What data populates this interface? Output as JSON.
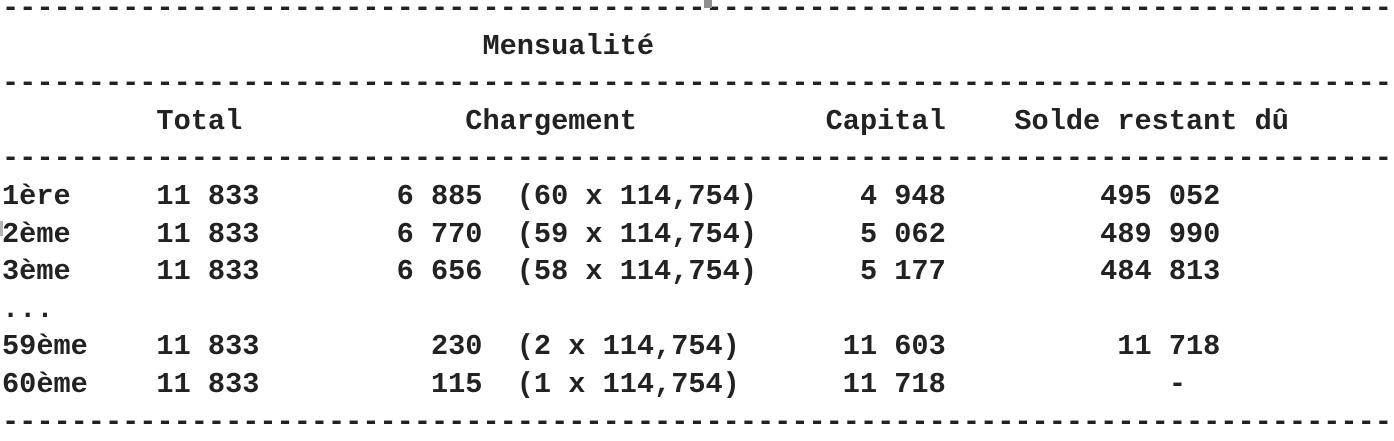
{
  "colors": {
    "text_color": "#222222",
    "background": "#ffffff",
    "artifact_gray": "#8f8f8f"
  },
  "table": {
    "title": "Mensualité",
    "headers": [
      "Total",
      "Chargement",
      "Capital",
      "Solde restant dû"
    ],
    "rows": [
      {
        "label": "1ère",
        "total": "11 833",
        "chargement": "6 885",
        "chargement_detail": "(60 x 114,754)",
        "capital": "4 948",
        "solde_restant_du": "495 052"
      },
      {
        "label": "2ème",
        "total": "11 833",
        "chargement": "6 770",
        "chargement_detail": "(59 x 114,754)",
        "capital": "5 062",
        "solde_restant_du": "489 990"
      },
      {
        "label": "3ème",
        "total": "11 833",
        "chargement": "6 656",
        "chargement_detail": "(58 x 114,754)",
        "capital": "5 177",
        "solde_restant_du": "484 813"
      },
      {
        "label": "...",
        "total": "",
        "chargement": "",
        "chargement_detail": "",
        "capital": "",
        "solde_restant_du": ""
      },
      {
        "label": "59ème",
        "total": "11 833",
        "chargement": "230",
        "chargement_detail": "(2 x 114,754)",
        "capital": "11 603",
        "solde_restant_du": "11 718"
      },
      {
        "label": "60ème",
        "total": "11 833",
        "chargement": "115",
        "chargement_detail": "(1 x 114,754)",
        "capital": "11 718",
        "solde_restant_du": "-"
      }
    ]
  },
  "listing": {
    "lines": [
      {
        "name": "separator-top",
        "text": "---------------------------------------------------------------------------------"
      },
      {
        "name": "table-title",
        "text": "                            Mensualité"
      },
      {
        "name": "separator-title",
        "text": "---------------------------------------------------------------------------------"
      },
      {
        "name": "column-headers",
        "text": "         Total             Chargement           Capital    Solde restant dû"
      },
      {
        "name": "separator-header",
        "text": "---------------------------------------------------------------------------------"
      },
      {
        "name": "table-row",
        "text": "1ère     11 833        6 885  (60 x 114,754)      4 948         495 052"
      },
      {
        "name": "table-row",
        "text": "2ème     11 833        6 770  (59 x 114,754)      5 062         489 990"
      },
      {
        "name": "table-row",
        "text": "3ème     11 833        6 656  (58 x 114,754)      5 177         484 813"
      },
      {
        "name": "ellipsis-row",
        "text": "..."
      },
      {
        "name": "table-row",
        "text": "59ème    11 833          230  (2 x 114,754)      11 603          11 718"
      },
      {
        "name": "table-row",
        "text": "60ème    11 833          115  (1 x 114,754)      11 718             -"
      },
      {
        "name": "separator-bottom",
        "text": "---------------------------------------------------------------------------------"
      }
    ]
  }
}
